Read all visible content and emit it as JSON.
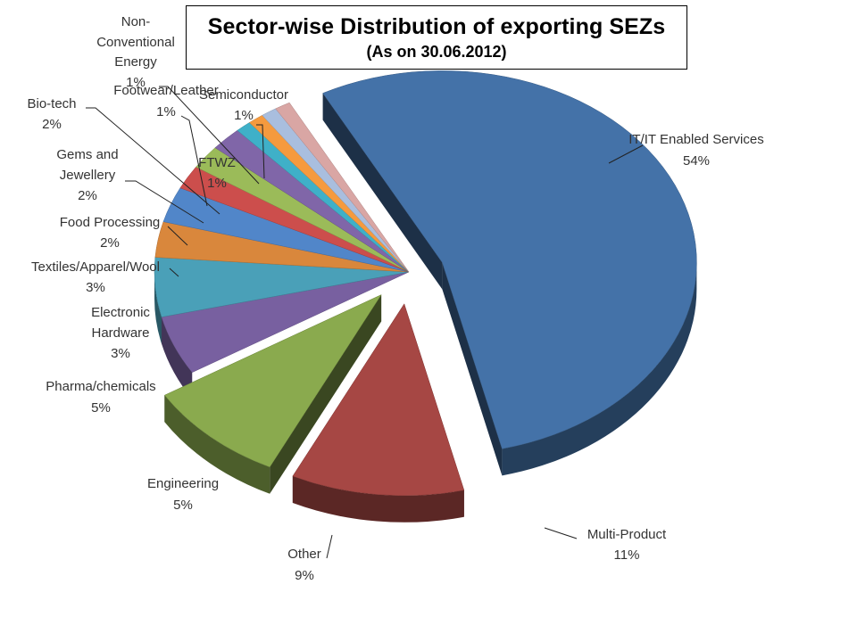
{
  "chart_data": {
    "type": "pie",
    "title": "Sector-wise Distribution of exporting SEZs",
    "subtitle": "(As on 30.06.2012)",
    "slices": [
      {
        "label": "IT/IT Enabled Services",
        "pct_label": "54%",
        "value": 54,
        "color": "#4472A8",
        "exploded": true
      },
      {
        "label": "Multi-Product",
        "pct_label": "11%",
        "value": 11,
        "color": "#A64744",
        "exploded": true
      },
      {
        "label": "Other",
        "pct_label": "9%",
        "value": 9,
        "color": "#8AAA4E",
        "exploded": true
      },
      {
        "label": "Engineering",
        "pct_label": "5%",
        "value": 5,
        "color": "#7860A0",
        "exploded": false
      },
      {
        "label": "Pharma/chemicals",
        "pct_label": "5%",
        "value": 5,
        "color": "#4AA0B8",
        "exploded": false
      },
      {
        "label": "Electronic Hardware",
        "pct_label": "3%",
        "value": 3,
        "color": "#D9873C",
        "exploded": false
      },
      {
        "label": "Textiles/Apparel/Wool",
        "pct_label": "3%",
        "value": 3,
        "color": "#5186C9",
        "exploded": false
      },
      {
        "label": "Food Processing",
        "pct_label": "2%",
        "value": 2,
        "color": "#CC4E4C",
        "exploded": false
      },
      {
        "label": "Gems and Jewellery",
        "pct_label": "2%",
        "value": 2,
        "color": "#9BBB59",
        "exploded": false
      },
      {
        "label": "Bio-tech",
        "pct_label": "2%",
        "value": 2,
        "color": "#8066A8",
        "exploded": false
      },
      {
        "label": "FTWZ",
        "pct_label": "1%",
        "value": 1,
        "color": "#3FB0C8",
        "exploded": false
      },
      {
        "label": "Footwear/Leather",
        "pct_label": "1%",
        "value": 1,
        "color": "#F59A3E",
        "exploded": false
      },
      {
        "label": "Non-Conventional Energy",
        "pct_label": "1%",
        "value": 1,
        "color": "#A9BEDE",
        "exploded": false
      },
      {
        "label": "Semiconductor",
        "pct_label": "1%",
        "value": 1,
        "color": "#D9A6A4",
        "exploded": false
      }
    ]
  }
}
